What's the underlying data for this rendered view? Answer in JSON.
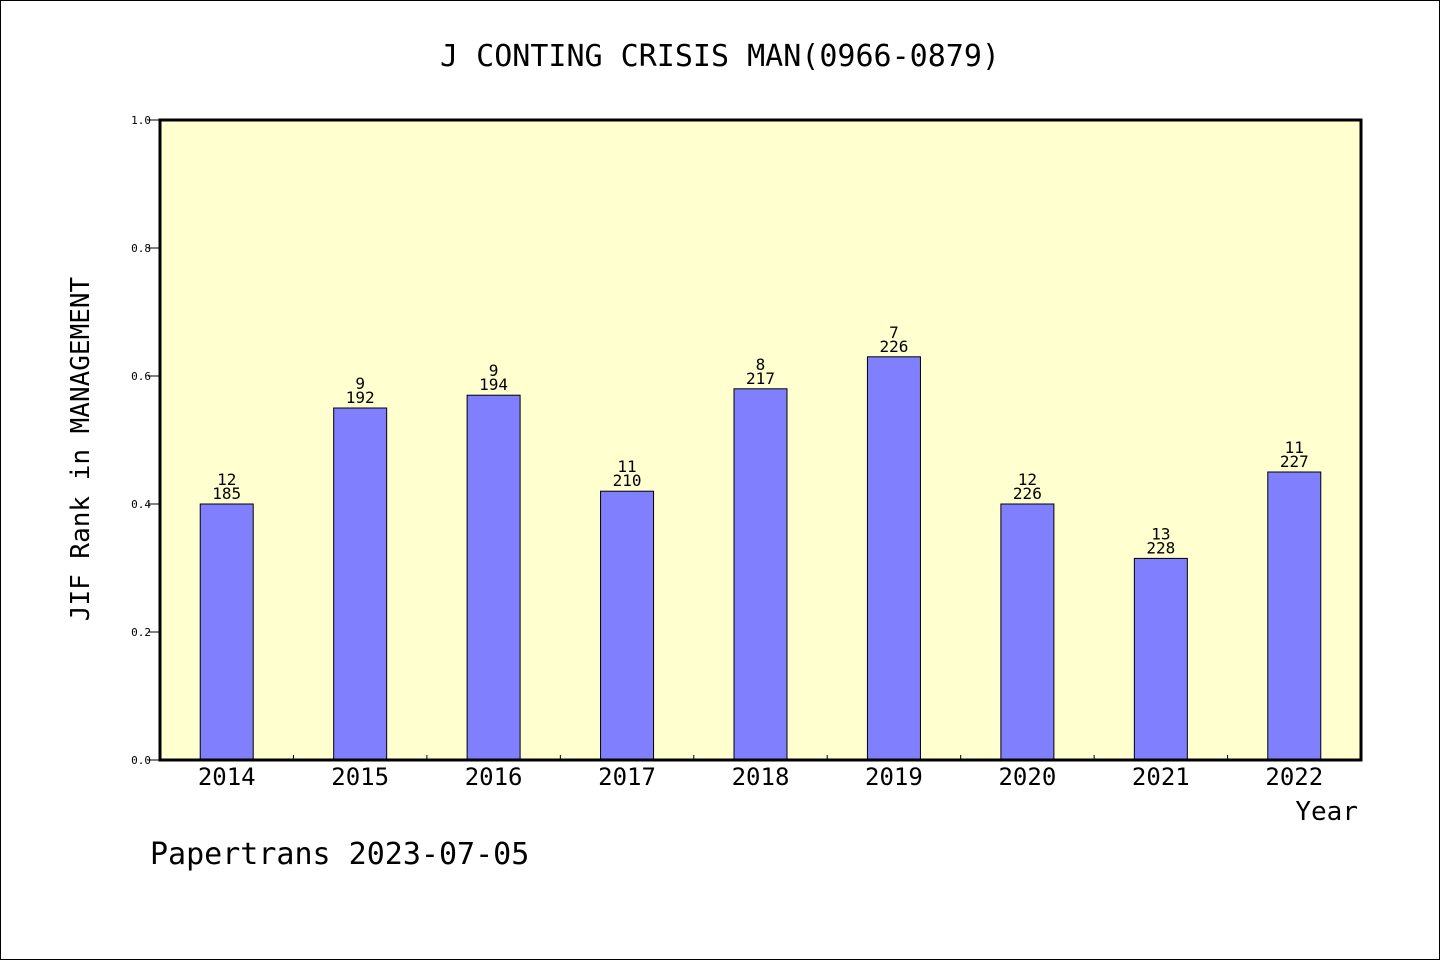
{
  "chart_data": {
    "type": "bar",
    "title": "J CONTING CRISIS MAN(0966-0879)",
    "xlabel": "Year",
    "ylabel": "JIF Rank in MANAGEMENT",
    "ylim": [
      0,
      1.0
    ],
    "yticks": [
      "0.0",
      "0.2",
      "0.4",
      "0.6",
      "0.8",
      "1.0"
    ],
    "categories": [
      "2014",
      "2015",
      "2016",
      "2017",
      "2018",
      "2019",
      "2020",
      "2021",
      "2022"
    ],
    "values": [
      0.4,
      0.55,
      0.57,
      0.42,
      0.58,
      0.63,
      0.4,
      0.315,
      0.45
    ],
    "rank_labels": [
      "12",
      "9",
      "9",
      "11",
      "8",
      "7",
      "12",
      "13",
      "11"
    ],
    "total_labels": [
      "185",
      "192",
      "194",
      "210",
      "217",
      "226",
      "226",
      "228",
      "227"
    ],
    "grid": false,
    "colors": {
      "plot_bg": "#ffffd0",
      "bar": "#8080ff",
      "stroke": "#000000"
    }
  },
  "footer": "Papertrans 2023-07-05"
}
